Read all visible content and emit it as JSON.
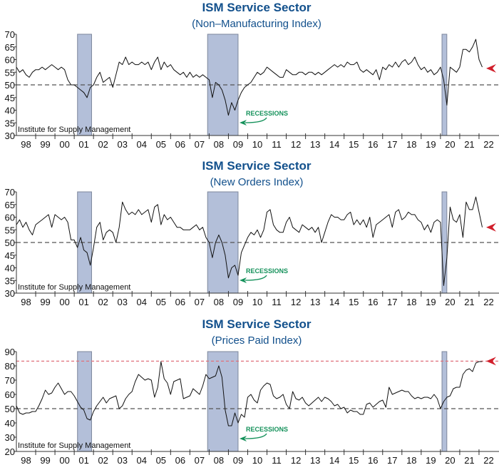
{
  "chart_data": [
    {
      "type": "line",
      "title": "ISM Service Sector",
      "subtitle": "(Non–Manufacturing Index)",
      "source": "Institute for Supply Management",
      "recession_label": "RECESSIONS",
      "ylim": [
        30,
        70
      ],
      "yticks": [
        30,
        35,
        40,
        45,
        50,
        55,
        60,
        65,
        70
      ],
      "xlim": [
        1998,
        2023
      ],
      "xtick_labels": [
        "98",
        "99",
        "00",
        "01",
        "02",
        "03",
        "04",
        "05",
        "06",
        "07",
        "08",
        "09",
        "10",
        "11",
        "12",
        "13",
        "14",
        "15",
        "16",
        "17",
        "18",
        "19",
        "20",
        "21",
        "22"
      ],
      "recessions": [
        [
          2001.17,
          2001.9
        ],
        [
          2007.92,
          2009.5
        ],
        [
          2020.08,
          2020.33
        ]
      ],
      "ref_line": 50,
      "marker_value": 56.5,
      "x_start": 1998,
      "x_step_months": 2,
      "values": [
        57,
        55,
        56,
        54,
        53,
        55,
        56,
        56,
        57,
        56,
        57,
        58,
        57,
        56,
        57,
        56,
        52,
        50,
        50,
        49,
        48,
        47,
        45,
        49,
        50,
        53,
        55,
        51,
        52,
        53,
        49,
        54,
        59,
        58,
        61,
        58,
        59,
        58,
        58,
        59,
        58,
        59,
        56,
        59,
        61,
        56,
        59,
        57,
        58,
        56,
        55,
        54,
        55,
        53,
        55,
        53,
        54,
        53,
        54,
        53,
        52,
        45,
        51,
        50,
        48,
        44,
        38,
        43,
        40,
        44,
        47,
        49,
        50,
        51,
        53,
        55,
        54,
        55,
        57,
        56,
        55,
        54,
        53,
        53,
        56,
        55,
        54,
        54,
        55,
        55,
        54,
        55,
        55,
        54,
        55,
        54,
        55,
        56,
        57,
        58,
        57,
        58,
        57,
        59,
        58,
        58,
        59,
        56,
        55,
        56,
        55,
        54,
        56,
        52,
        57,
        56,
        58,
        57,
        59,
        57,
        59,
        60,
        58,
        59,
        61,
        58,
        56,
        57,
        55,
        56,
        54,
        55,
        57,
        52,
        42,
        57,
        56,
        55,
        57,
        64,
        64,
        63,
        65,
        68,
        60,
        57
      ]
    },
    {
      "type": "line",
      "title": "ISM Service Sector",
      "subtitle": "(New Orders Index)",
      "source": "Institute for Supply Management",
      "recession_label": "RECESSIONS",
      "ylim": [
        30,
        70
      ],
      "yticks": [
        30,
        35,
        40,
        45,
        50,
        55,
        60,
        65,
        70
      ],
      "xlim": [
        1998,
        2023
      ],
      "xtick_labels": [
        "98",
        "99",
        "00",
        "01",
        "02",
        "03",
        "04",
        "05",
        "06",
        "07",
        "08",
        "09",
        "10",
        "11",
        "12",
        "13",
        "14",
        "15",
        "16",
        "17",
        "18",
        "19",
        "20",
        "21",
        "22"
      ],
      "recessions": [
        [
          2001.17,
          2001.9
        ],
        [
          2007.92,
          2009.5
        ],
        [
          2020.08,
          2020.33
        ]
      ],
      "ref_line": 50,
      "marker_value": 56,
      "x_start": 1998,
      "x_step_months": 2,
      "values": [
        57,
        59,
        56,
        58,
        55,
        53,
        57,
        58,
        59,
        60,
        61,
        56,
        61,
        60,
        59,
        60,
        58,
        51,
        51,
        48,
        52,
        47,
        46,
        41,
        48,
        56,
        58,
        51,
        54,
        55,
        54,
        50,
        56,
        66,
        63,
        61,
        62,
        61,
        63,
        61,
        62,
        63,
        58,
        64,
        65,
        57,
        61,
        59,
        60,
        58,
        56,
        56,
        55,
        55,
        55,
        56,
        57,
        55,
        56,
        52,
        50,
        44,
        50,
        53,
        50,
        45,
        36,
        40,
        41,
        37,
        46,
        49,
        52,
        54,
        53,
        55,
        52,
        55,
        62,
        63,
        57,
        55,
        54,
        54,
        58,
        60,
        56,
        55,
        54,
        57,
        56,
        55,
        56,
        54,
        56,
        50,
        54,
        58,
        61,
        60,
        60,
        59,
        59,
        61,
        62,
        57,
        59,
        57,
        59,
        56,
        60,
        52,
        57,
        58,
        59,
        60,
        61,
        56,
        62,
        63,
        59,
        60,
        62,
        61,
        61,
        59,
        58,
        55,
        57,
        54,
        58,
        59,
        58,
        33,
        44,
        64,
        59,
        58,
        61,
        52,
        66,
        63,
        63,
        68,
        62,
        56
      ]
    },
    {
      "type": "line",
      "title": "ISM Service Sector",
      "subtitle": "(Prices Paid Index)",
      "source": "Institute for Supply Management",
      "recession_label": "RECESSIONS",
      "ylim": [
        20,
        90
      ],
      "yticks": [
        20,
        30,
        40,
        50,
        60,
        70,
        80,
        90
      ],
      "xlim": [
        1998,
        2023
      ],
      "xtick_labels": [
        "98",
        "99",
        "00",
        "01",
        "02",
        "03",
        "04",
        "05",
        "06",
        "07",
        "08",
        "09",
        "10",
        "11",
        "12",
        "13",
        "14",
        "15",
        "16",
        "17",
        "18",
        "19",
        "20",
        "21",
        "22"
      ],
      "recessions": [
        [
          2001.17,
          2001.9
        ],
        [
          2007.92,
          2009.5
        ],
        [
          2020.08,
          2020.33
        ]
      ],
      "ref_line": 50,
      "high_line": 83.3,
      "marker_value": 83.3,
      "x_start": 1998,
      "x_step_months": 2,
      "values": [
        52,
        47,
        46,
        47,
        47,
        48,
        48,
        52,
        57,
        63,
        60,
        61,
        65,
        68,
        64,
        60,
        62,
        62,
        59,
        55,
        51,
        49,
        43,
        42,
        48,
        52,
        55,
        58,
        54,
        57,
        58,
        59,
        50,
        52,
        57,
        60,
        62,
        69,
        74,
        72,
        70,
        71,
        70,
        58,
        65,
        83,
        71,
        68,
        60,
        69,
        70,
        71,
        57,
        58,
        59,
        64,
        62,
        60,
        66,
        74,
        71,
        72,
        73,
        80,
        72,
        49,
        38,
        38,
        47,
        40,
        46,
        44,
        58,
        60,
        56,
        54,
        63,
        66,
        68,
        67,
        59,
        57,
        58,
        60,
        53,
        50,
        62,
        57,
        56,
        58,
        54,
        52,
        54,
        56,
        58,
        55,
        58,
        57,
        55,
        52,
        53,
        50,
        51,
        47,
        49,
        48,
        48,
        46,
        46,
        53,
        54,
        51,
        53,
        55,
        56,
        51,
        65,
        60,
        61,
        62,
        63,
        62,
        62,
        59,
        57,
        58,
        57,
        58,
        58,
        57,
        60,
        57,
        50,
        55,
        58,
        59,
        64,
        65,
        65,
        74,
        77,
        78,
        76,
        82,
        83,
        83
      ]
    }
  ],
  "colors": {
    "title": "#12508c",
    "recession_fill": "#b3bfd9",
    "recession_stroke": "#7d879c",
    "line": "#111111",
    "ref": "#555555",
    "high": "#e0707a",
    "marker": "#d11f2b",
    "label": "#14915a"
  }
}
